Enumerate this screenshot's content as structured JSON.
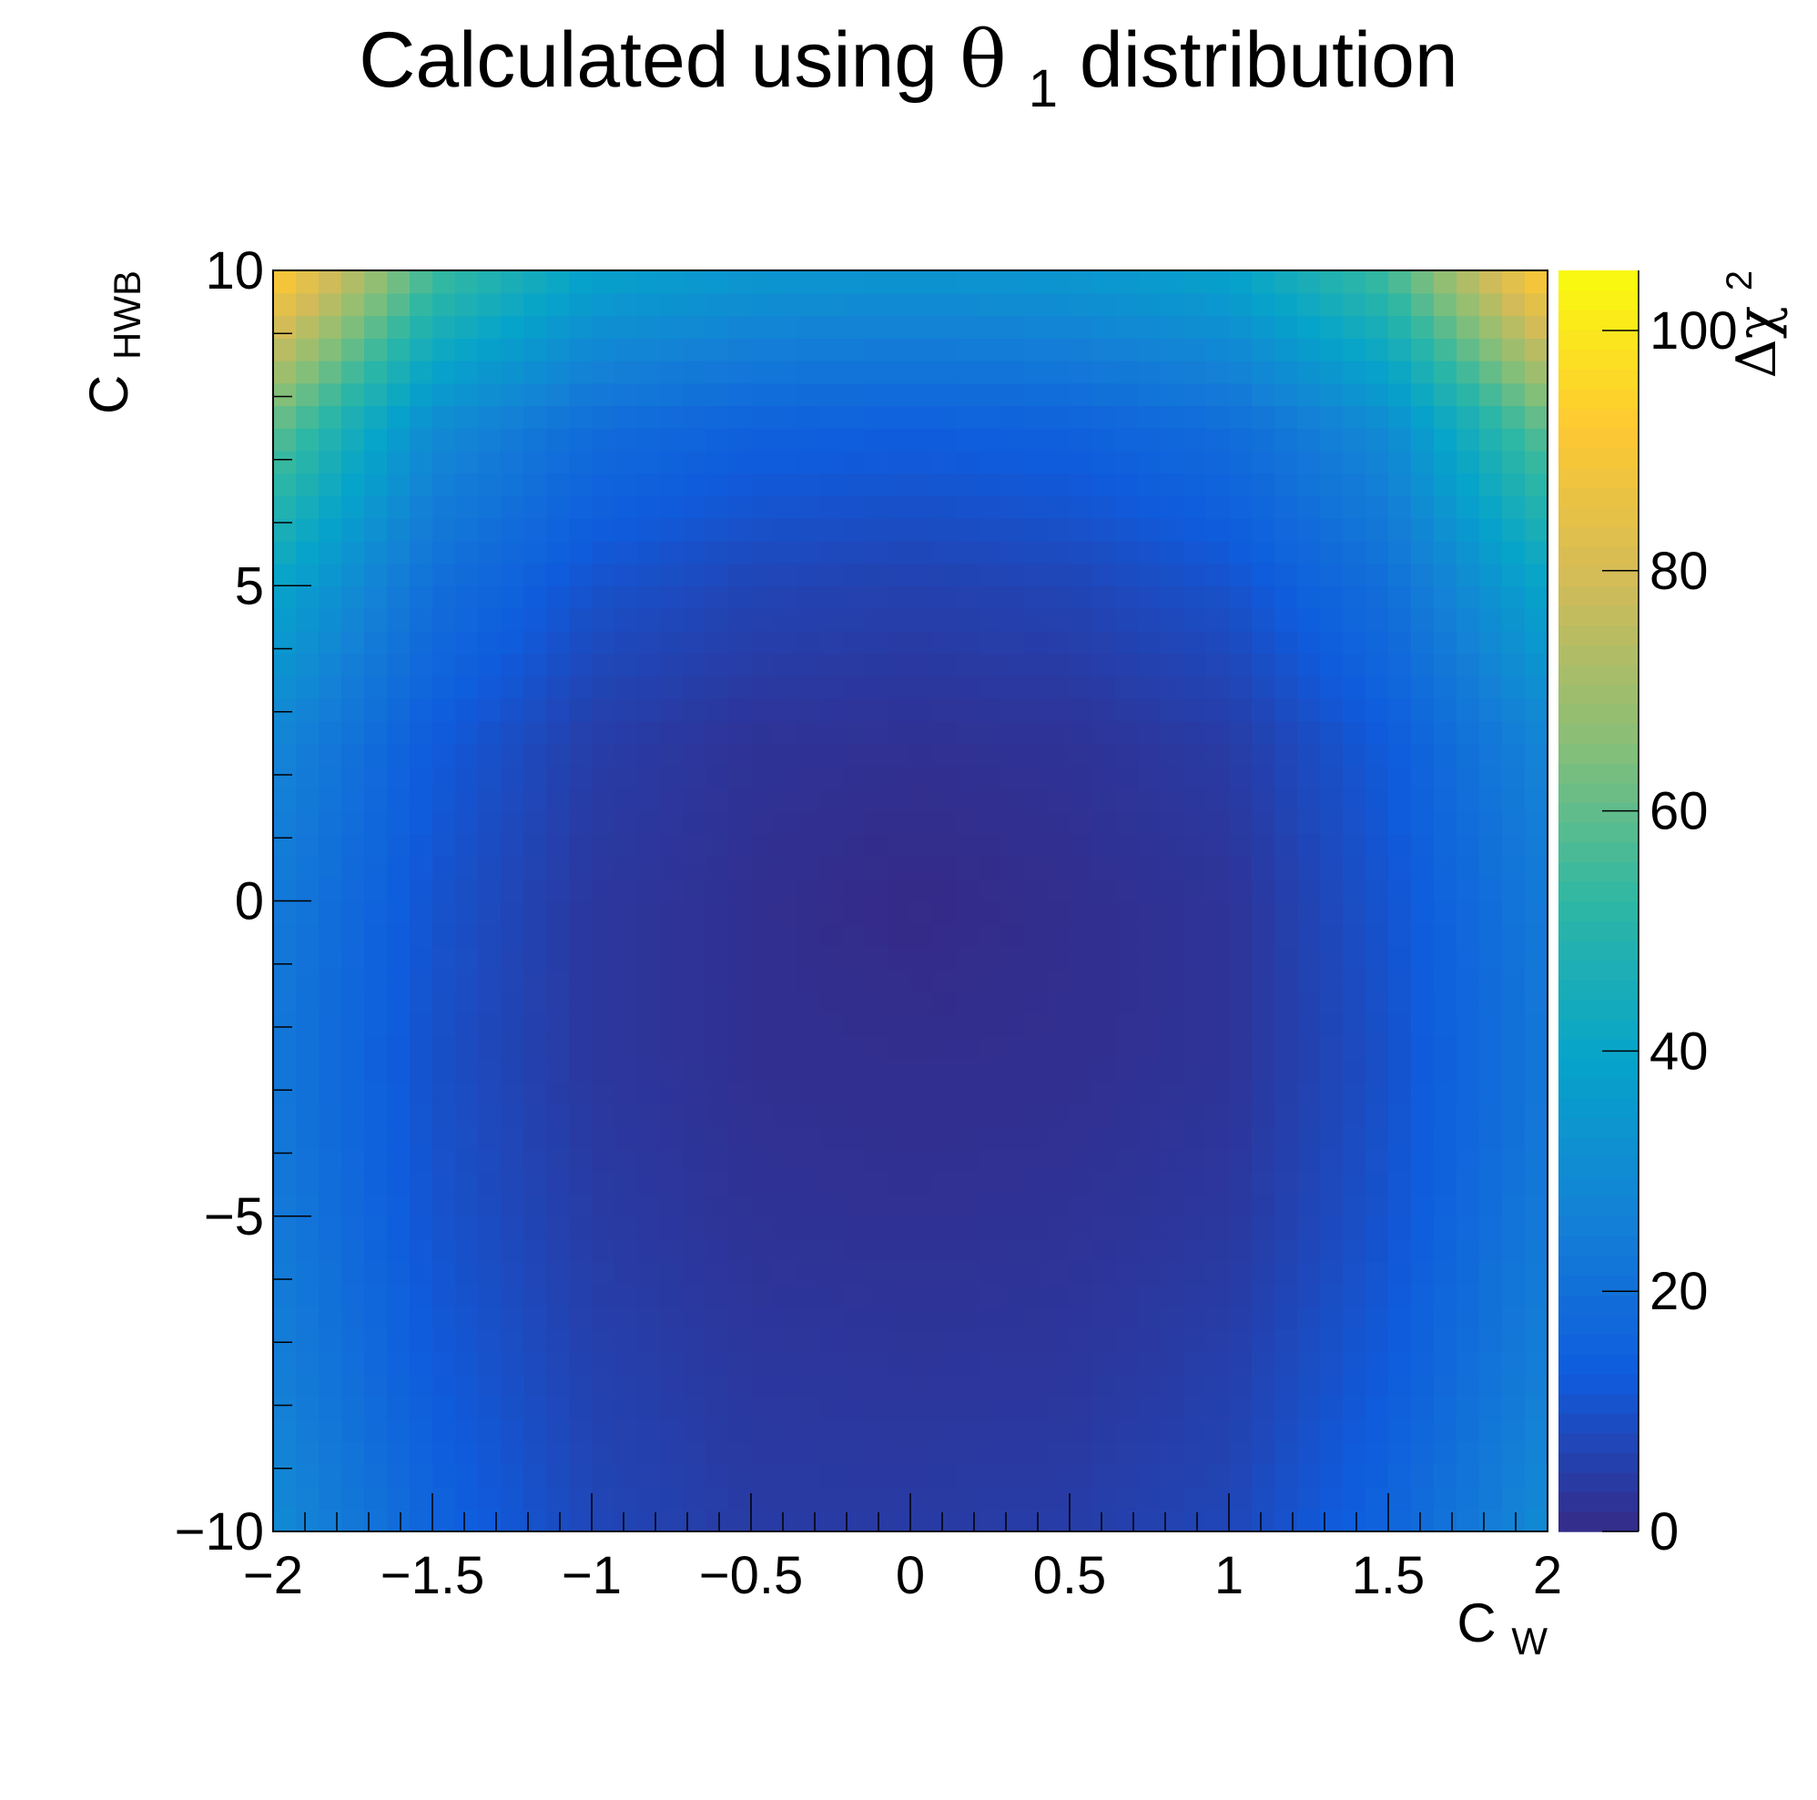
{
  "chart_data": {
    "type": "heatmap",
    "title": "Calculated using θ1 distribution",
    "title_parts": {
      "before": "Calculated using ",
      "symbol": "θ",
      "subscript": "1",
      "after": " distribution"
    },
    "xlabel": "C",
    "xlabel_sub": "W",
    "ylabel": "C",
    "ylabel_sub": "HWB",
    "zlabel": "Δχ",
    "zlabel_sup": "2",
    "xlim": [
      -2,
      2
    ],
    "ylim": [
      -10,
      10
    ],
    "zlim": [
      0,
      105
    ],
    "x_ticks": [
      {
        "v": -2,
        "label": "−2"
      },
      {
        "v": -1.5,
        "label": "−1.5"
      },
      {
        "v": -1,
        "label": "−1"
      },
      {
        "v": -0.5,
        "label": "−0.5"
      },
      {
        "v": 0,
        "label": "0"
      },
      {
        "v": 0.5,
        "label": "0.5"
      },
      {
        "v": 1,
        "label": "1"
      },
      {
        "v": 1.5,
        "label": "1.5"
      },
      {
        "v": 2,
        "label": "2"
      }
    ],
    "y_ticks": [
      {
        "v": -10,
        "label": "−10"
      },
      {
        "v": -5,
        "label": "−5"
      },
      {
        "v": 0,
        "label": "0"
      },
      {
        "v": 5,
        "label": "5"
      },
      {
        "v": 10,
        "label": "10"
      }
    ],
    "z_ticks": [
      {
        "v": 0,
        "label": "0"
      },
      {
        "v": 20,
        "label": "20"
      },
      {
        "v": 40,
        "label": "40"
      },
      {
        "v": 60,
        "label": "60"
      },
      {
        "v": 80,
        "label": "80"
      },
      {
        "v": 100,
        "label": "100"
      }
    ],
    "colorscale": "parula",
    "colors": [
      "#352a87",
      "#0f5cdd",
      "#1481d6",
      "#06a4ca",
      "#2eb7a4",
      "#87bf77",
      "#d1bb59",
      "#fec832",
      "#f9fb0e"
    ],
    "x": [
      -2,
      -1.5,
      -1,
      -0.5,
      0,
      0.5,
      1,
      1.5,
      2
    ],
    "y": [
      -10,
      -7.5,
      -5,
      -2.5,
      0,
      2.5,
      5,
      7.5,
      10
    ],
    "z": [
      [
        30,
        16,
        7.5,
        4.5,
        4.5,
        5,
        7.5,
        16,
        30
      ],
      [
        26,
        13,
        6,
        3.5,
        3,
        3.2,
        5.5,
        13,
        26
      ],
      [
        24,
        11,
        4.5,
        2.2,
        1.8,
        2.2,
        3.5,
        11,
        24
      ],
      [
        23,
        10,
        3.5,
        1.5,
        1.2,
        1.3,
        2.5,
        10,
        23
      ],
      [
        24,
        11,
        3.5,
        1.5,
        0,
        1.2,
        2.5,
        11,
        24
      ],
      [
        28,
        13,
        5,
        2.3,
        1.8,
        2.2,
        4.5,
        13,
        28
      ],
      [
        40,
        20,
        10.5,
        7,
        6,
        7,
        10.5,
        20,
        40
      ],
      [
        60,
        30,
        19,
        15,
        14,
        15,
        19,
        30,
        60
      ],
      [
        94,
        56,
        39,
        35,
        34,
        35,
        39,
        56,
        94
      ]
    ],
    "grid": false,
    "legend": "none"
  }
}
